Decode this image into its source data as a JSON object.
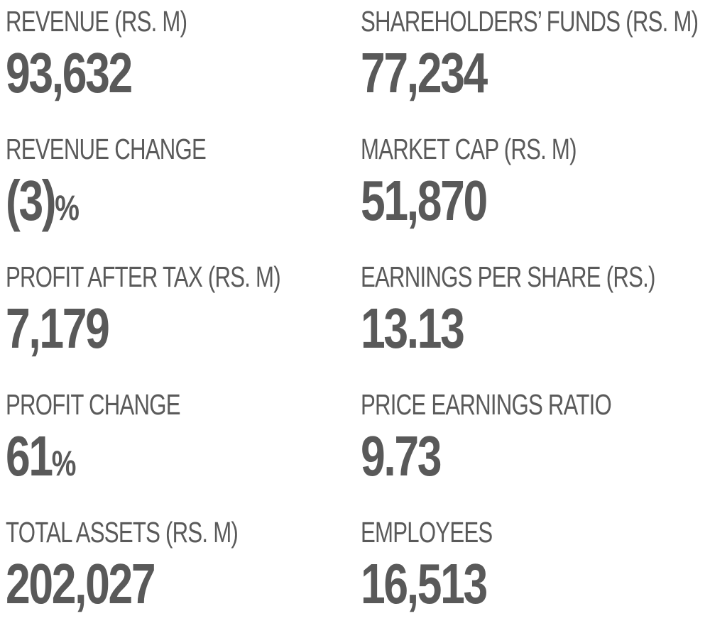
{
  "stats": [
    {
      "label": "REVENUE (RS. M)",
      "value": "93,632"
    },
    {
      "label": "SHAREHOLDERS’ FUNDS (RS. M)",
      "value": "77,234"
    },
    {
      "label": "REVENUE CHANGE",
      "value": "(3)",
      "suffix": "%"
    },
    {
      "label": "MARKET CAP (RS. M)",
      "value": "51,870"
    },
    {
      "label": "PROFIT AFTER TAX (RS. M)",
      "value": "7,179"
    },
    {
      "label": "EARNINGS PER SHARE (RS.)",
      "value": "13.13"
    },
    {
      "label": "PROFIT CHANGE",
      "value": "61",
      "suffix": "%"
    },
    {
      "label": "PRICE EARNINGS RATIO",
      "value": "9.73"
    },
    {
      "label": "TOTAL ASSETS (RS. M)",
      "value": "202,027"
    },
    {
      "label": "EMPLOYEES",
      "value": "16,513"
    }
  ]
}
